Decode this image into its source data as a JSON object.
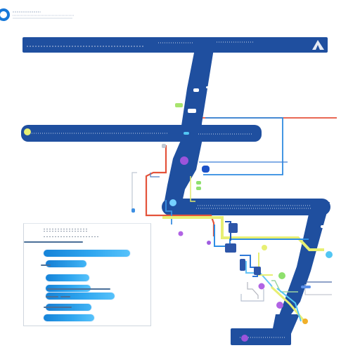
{
  "diagram": {
    "type": "network-map",
    "colors": {
      "track": "#1f4f9f",
      "track_dark": "#17428c",
      "accent_red": "#e4533b",
      "accent_blue": "#2f8be0",
      "accent_cyan": "#52c6f3",
      "accent_yellow": "#e7ef73",
      "accent_green": "#8ee06d",
      "accent_purple": "#9c54db",
      "accent_orange": "#f0b02a",
      "panel_row": "#2fa6ef"
    },
    "icons": {
      "logo": "ring-icon",
      "corner_arrow": "arrow-icon"
    }
  }
}
